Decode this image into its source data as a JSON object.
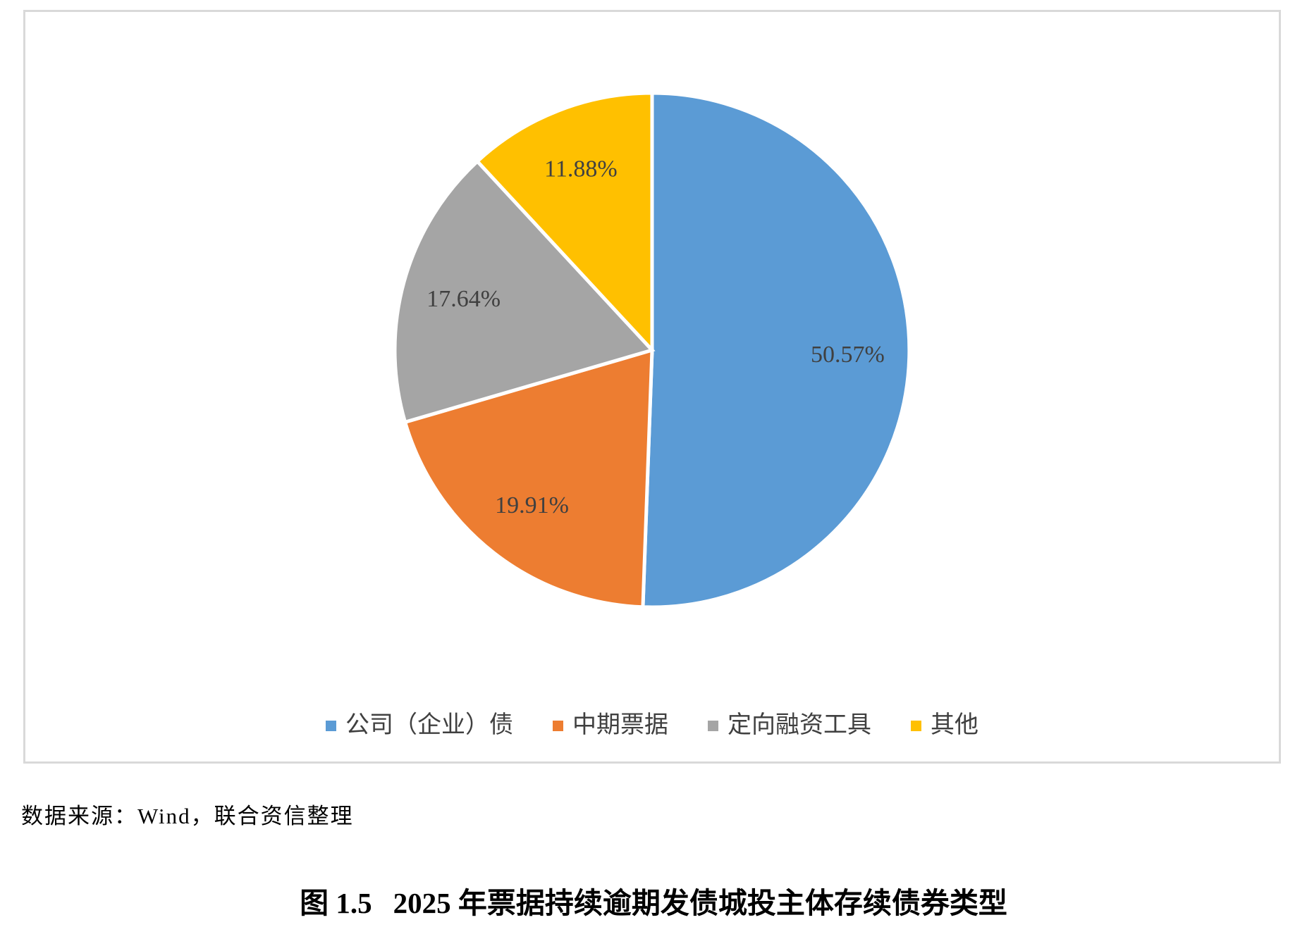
{
  "chart_data": {
    "type": "pie",
    "title": "图 1.5　2025 年票据持续逾期发债城投主体存续债券类型",
    "categories": [
      "公司（企业）债",
      "中期票据",
      "定向融资工具",
      "其他"
    ],
    "values": [
      50.57,
      19.91,
      17.64,
      11.88
    ],
    "labels": [
      "50.57%",
      "19.91%",
      "17.64%",
      "11.88%"
    ],
    "colors": [
      "#5B9BD5",
      "#ED7D31",
      "#A5A5A5",
      "#FFC000"
    ],
    "start_angle_deg": 0,
    "direction": "clockwise",
    "legend_position": "bottom",
    "slice_border_color": "#FFFFFF",
    "label_color": "#404040"
  },
  "figure": {
    "number": "图 1.5",
    "caption": "2025 年票据持续逾期发债城投主体存续债券类型"
  },
  "source_note": "数据来源：Wind，联合资信整理"
}
